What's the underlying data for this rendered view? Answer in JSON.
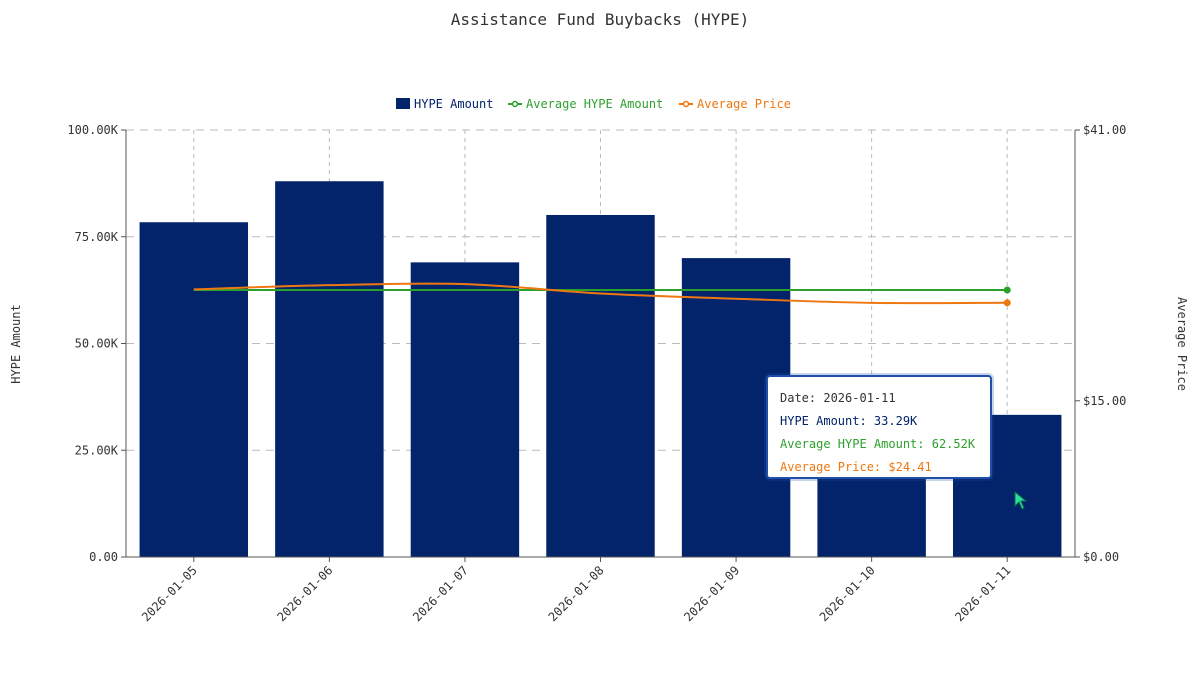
{
  "chart_data": {
    "type": "bar",
    "title": "Assistance Fund Buybacks (HYPE)",
    "categories": [
      "2026-01-05",
      "2026-01-06",
      "2026-01-07",
      "2026-01-08",
      "2026-01-09",
      "2026-01-10",
      "2026-01-11"
    ],
    "series": [
      {
        "name": "HYPE Amount",
        "type": "bar",
        "axis": "left",
        "color": "#03246b",
        "values": [
          78400,
          88000,
          69000,
          80100,
          70000,
          30000,
          33290
        ]
      },
      {
        "name": "Average HYPE Amount",
        "type": "line",
        "axis": "left",
        "color": "#2ca02c",
        "values": [
          62520,
          62520,
          62520,
          62520,
          62520,
          62520,
          62520
        ]
      },
      {
        "name": "Average Price",
        "type": "line",
        "axis": "right",
        "color": "#ee7711",
        "values": [
          25.7,
          26.1,
          26.2,
          25.3,
          24.8,
          24.4,
          24.41
        ]
      }
    ],
    "ylabel": "HYPE Amount",
    "y2label": "Average Price",
    "ylim": [
      0,
      100000
    ],
    "y2lim": [
      0,
      41
    ],
    "y_ticks": [
      "0.00",
      "25.00K",
      "50.00K",
      "75.00K",
      "100.00K"
    ],
    "y_tick_values": [
      0,
      25000,
      50000,
      75000,
      100000
    ],
    "y2_ticks": [
      "$0.00",
      "$15.00",
      "$41.00"
    ],
    "y2_tick_values": [
      0,
      15,
      41
    ],
    "grid": true,
    "legend": "top-center"
  },
  "tooltip": {
    "date": "Date: 2026-01-11",
    "hype_amount": "HYPE Amount: 33.29K",
    "avg_amount": "Average HYPE Amount: 62.52K",
    "avg_price": "Average Price: $24.41"
  }
}
